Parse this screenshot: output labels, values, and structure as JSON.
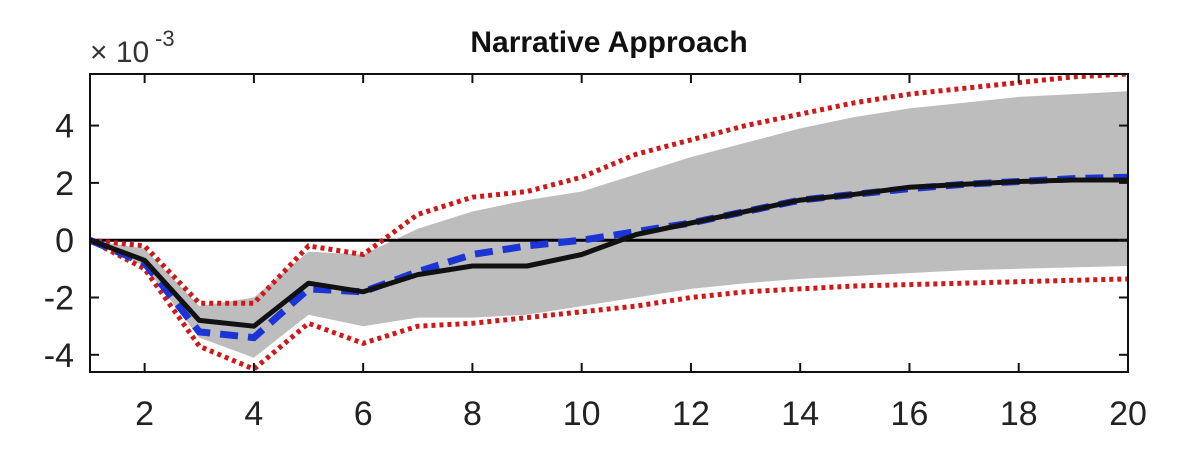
{
  "chart_data": {
    "type": "line",
    "title": "Narrative Approach",
    "y_multiplier": {
      "base": "× 10",
      "exponent": "-3"
    },
    "xlim": [
      1,
      20
    ],
    "ylim": [
      -4.6,
      5.8
    ],
    "x_ticks": [
      2,
      4,
      6,
      8,
      10,
      12,
      14,
      16,
      18,
      20
    ],
    "y_ticks": [
      -4,
      -2,
      0,
      2,
      4
    ],
    "zero_line": true,
    "grid": false,
    "colors": {
      "band": "#bdbdbd",
      "bounds": "#d01818",
      "median": "#111111",
      "alt": "#1a34d6",
      "zero": "#000000"
    },
    "x": [
      1,
      2,
      3,
      4,
      5,
      6,
      7,
      8,
      9,
      10,
      11,
      12,
      13,
      14,
      15,
      16,
      17,
      18,
      19,
      20
    ],
    "series": [
      {
        "role": "band_lower",
        "values": [
          0,
          -0.9,
          -3.4,
          -4.1,
          -2.6,
          -3.0,
          -2.7,
          -2.7,
          -2.6,
          -2.3,
          -2.0,
          -1.7,
          -1.5,
          -1.35,
          -1.25,
          -1.15,
          -1.05,
          -1.0,
          -0.95,
          -0.9
        ]
      },
      {
        "role": "band_upper",
        "values": [
          0,
          -0.3,
          -2.3,
          -2.0,
          -0.4,
          -0.5,
          0.4,
          1.0,
          1.4,
          1.7,
          2.3,
          2.9,
          3.4,
          3.9,
          4.3,
          4.6,
          4.8,
          5.0,
          5.1,
          5.2
        ]
      },
      {
        "role": "lower_bound",
        "values": [
          0,
          -1.0,
          -3.7,
          -4.5,
          -2.9,
          -3.6,
          -3.0,
          -2.9,
          -2.7,
          -2.5,
          -2.3,
          -2.0,
          -1.8,
          -1.7,
          -1.6,
          -1.55,
          -1.5,
          -1.45,
          -1.4,
          -1.35
        ]
      },
      {
        "role": "upper_bound",
        "values": [
          0,
          -0.2,
          -2.2,
          -2.2,
          -0.2,
          -0.5,
          0.9,
          1.5,
          1.7,
          2.2,
          3.0,
          3.5,
          4.0,
          4.4,
          4.8,
          5.1,
          5.3,
          5.5,
          5.7,
          5.8
        ]
      },
      {
        "role": "median",
        "values": [
          0,
          -0.7,
          -2.8,
          -3.0,
          -1.5,
          -1.8,
          -1.2,
          -0.9,
          -0.9,
          -0.5,
          0.2,
          0.6,
          1.0,
          1.4,
          1.6,
          1.85,
          1.95,
          2.05,
          2.1,
          2.1
        ]
      },
      {
        "role": "alternative",
        "values": [
          0,
          -0.8,
          -3.2,
          -3.4,
          -1.7,
          -1.8,
          -1.1,
          -0.5,
          -0.2,
          0,
          0.3,
          0.6,
          1.0,
          1.4,
          1.6,
          1.8,
          1.95,
          2.05,
          2.15,
          2.2
        ]
      }
    ]
  }
}
